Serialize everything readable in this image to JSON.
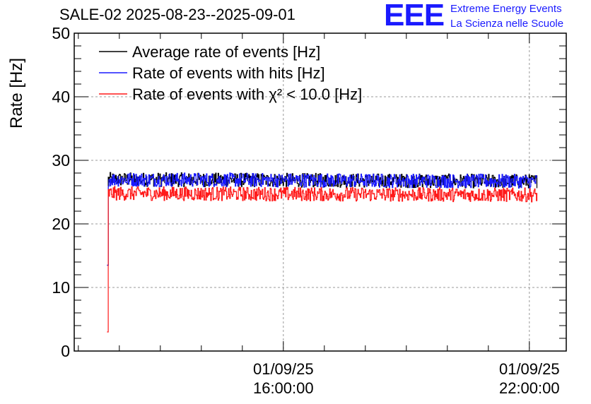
{
  "title": "SALE-02 2025-08-23--2025-09-01",
  "logo": {
    "mark": "EEE",
    "line1": "Extreme Energy Events",
    "line2": "La Scienza nelle Scuole",
    "color": "#1a1aff"
  },
  "chart_data": {
    "type": "line",
    "ylabel": "Rate [Hz]",
    "ylim": [
      0,
      50
    ],
    "yticks": [
      0,
      10,
      20,
      30,
      40,
      50
    ],
    "xlim_hours": [
      10.9,
      22.9
    ],
    "xticks": [
      {
        "date": "01/09/25",
        "time": "16:00:00",
        "hour": 16
      },
      {
        "date": "01/09/25",
        "time": "22:00:00",
        "hour": 22
      }
    ],
    "grid": true,
    "legend_position": "top-left",
    "series": [
      {
        "name": "Average rate of events [Hz]",
        "color": "#000000",
        "level": 27.0,
        "start_value": 13.5
      },
      {
        "name": "Rate of events with hits [Hz]",
        "color": "#1a1aff",
        "level": 27.0,
        "start_value": 13.5
      },
      {
        "name": "Rate of events with χ² < 10.0 [Hz]",
        "color": "#ff1a1a",
        "level": 24.8,
        "start_value": 3.0
      }
    ],
    "time_range_hours": [
      11.7,
      22.2
    ]
  }
}
